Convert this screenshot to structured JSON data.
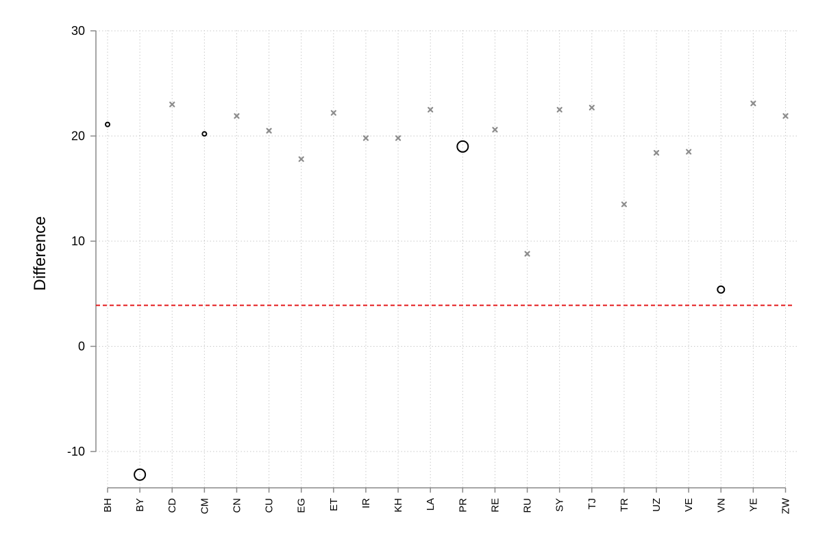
{
  "chart_data": {
    "type": "scatter",
    "title": "",
    "xlabel": "",
    "ylabel": "Difference",
    "ylim": [
      -13.5,
      30
    ],
    "yticks": [
      -10,
      0,
      10,
      20,
      30
    ],
    "categories": [
      "BH",
      "BY",
      "CD",
      "CM",
      "CN",
      "CU",
      "EG",
      "ET",
      "IR",
      "KH",
      "LA",
      "PR",
      "RE",
      "RU",
      "SY",
      "TJ",
      "TR",
      "UZ",
      "VE",
      "VN",
      "YE",
      "ZW"
    ],
    "grid": "dotted, both axes",
    "reference_line": {
      "y": 3.9,
      "style": "dashed",
      "color": "#e31a1c"
    },
    "series": [
      {
        "marker": "hollow-circle",
        "color": "#000000",
        "points": [
          {
            "x": "BH",
            "y": 21.1,
            "size": "small"
          },
          {
            "x": "BY",
            "y": -12.2,
            "size": "large"
          },
          {
            "x": "CM",
            "y": 20.2,
            "size": "small"
          },
          {
            "x": "PR",
            "y": 19.0,
            "size": "large"
          },
          {
            "x": "VN",
            "y": 5.4,
            "size": "medium"
          }
        ]
      },
      {
        "marker": "x",
        "color": "#8c8c8c",
        "points": [
          {
            "x": "CD",
            "y": 23.0
          },
          {
            "x": "CN",
            "y": 21.9
          },
          {
            "x": "CU",
            "y": 20.5
          },
          {
            "x": "EG",
            "y": 17.8
          },
          {
            "x": "ET",
            "y": 22.2
          },
          {
            "x": "IR",
            "y": 19.8
          },
          {
            "x": "KH",
            "y": 19.8
          },
          {
            "x": "LA",
            "y": 22.5
          },
          {
            "x": "RE",
            "y": 20.6
          },
          {
            "x": "RU",
            "y": 8.8
          },
          {
            "x": "SY",
            "y": 22.5
          },
          {
            "x": "TJ",
            "y": 22.7
          },
          {
            "x": "TR",
            "y": 13.5
          },
          {
            "x": "UZ",
            "y": 18.4
          },
          {
            "x": "VE",
            "y": 18.5
          },
          {
            "x": "YE",
            "y": 23.1
          },
          {
            "x": "ZW",
            "y": 21.9
          }
        ]
      }
    ]
  }
}
